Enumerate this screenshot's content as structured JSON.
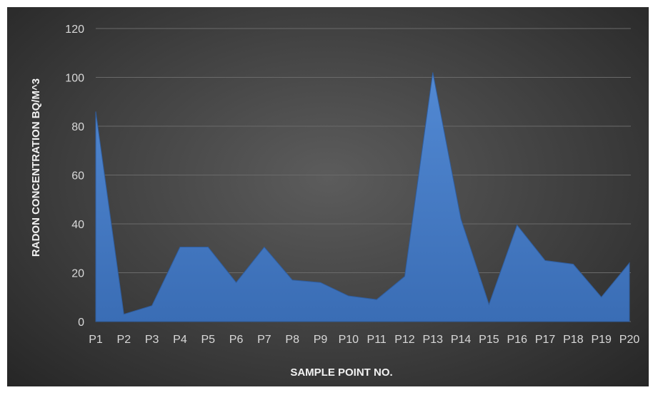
{
  "chart_data": {
    "type": "area",
    "title": "",
    "xlabel": "SAMPLE POINT NO.",
    "ylabel": "RADON CONCENTRATION BQ/M^3",
    "categories": [
      "P1",
      "P2",
      "P3",
      "P4",
      "P5",
      "P6",
      "P7",
      "P8",
      "P9",
      "P10",
      "P11",
      "P12",
      "P13",
      "P14",
      "P15",
      "P16",
      "P17",
      "P18",
      "P19",
      "P20"
    ],
    "series": [
      {
        "values": [
          86,
          3,
          6.5,
          30.5,
          30.5,
          16,
          30.5,
          17,
          16,
          10.5,
          9,
          18.5,
          102,
          42,
          7,
          39.5,
          25,
          23.5,
          10,
          24
        ]
      }
    ],
    "ylim": [
      0,
      120
    ],
    "yticks": [
      0,
      20,
      40,
      60,
      80,
      100,
      120
    ],
    "grid": true,
    "legend": "none",
    "colors": {
      "area": "#4a7fc8",
      "area_dark": "#2f5d9e",
      "grid": "#6a6a6a",
      "text": "#d9d9d9"
    }
  }
}
